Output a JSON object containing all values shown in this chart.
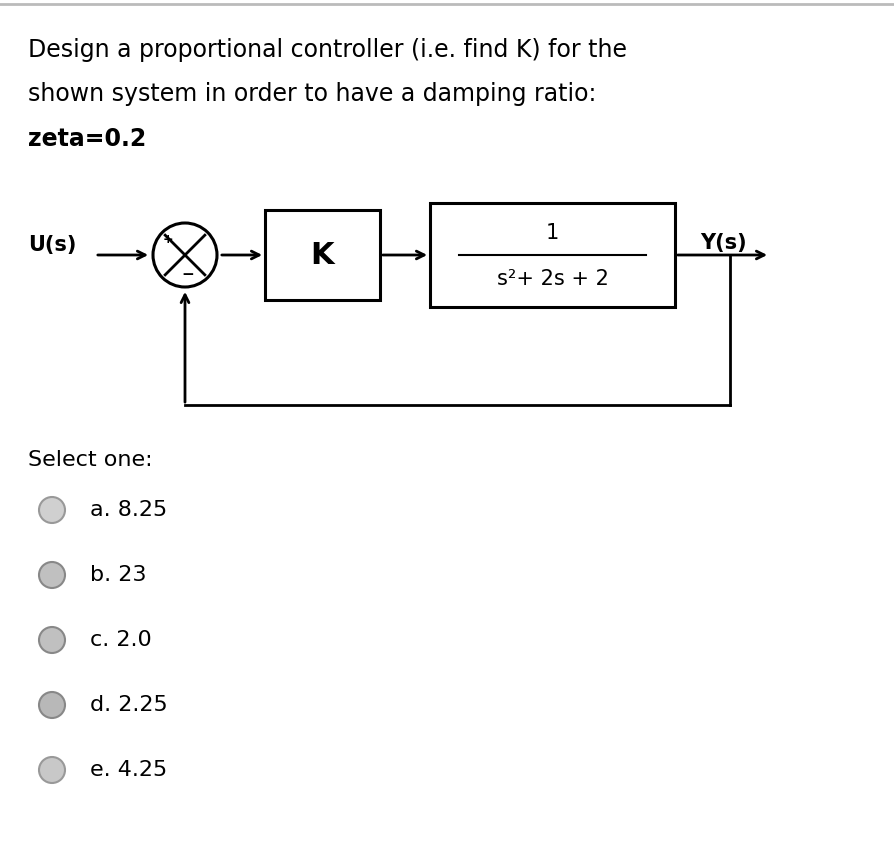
{
  "title_line1": "Design a proportional controller (i.e. find K) for the",
  "title_line2": "shown system in order to have a damping ratio:",
  "title_line3": "zeta=0.2",
  "input_label": "U(s)",
  "output_label": "Y(s)",
  "k_label": "K",
  "tf_numerator": "1",
  "tf_denominator": "s²+ 2s + 2",
  "select_one": "Select one:",
  "options": [
    "a. 8.25",
    "b. 23",
    "c. 2.0",
    "d. 2.25",
    "e. 4.25"
  ],
  "bg_color": "#ffffff",
  "text_color": "#000000",
  "border_color": "#bbbbbb",
  "font_size_title": 17,
  "font_size_options": 16,
  "font_size_diagram": 15,
  "radio_colors": [
    "#d0d0d0",
    "#c0c0c0",
    "#c0c0c0",
    "#b8b8b8",
    "#c8c8c8"
  ],
  "radio_edge_colors": [
    "#999999",
    "#888888",
    "#888888",
    "#888888",
    "#999999"
  ]
}
